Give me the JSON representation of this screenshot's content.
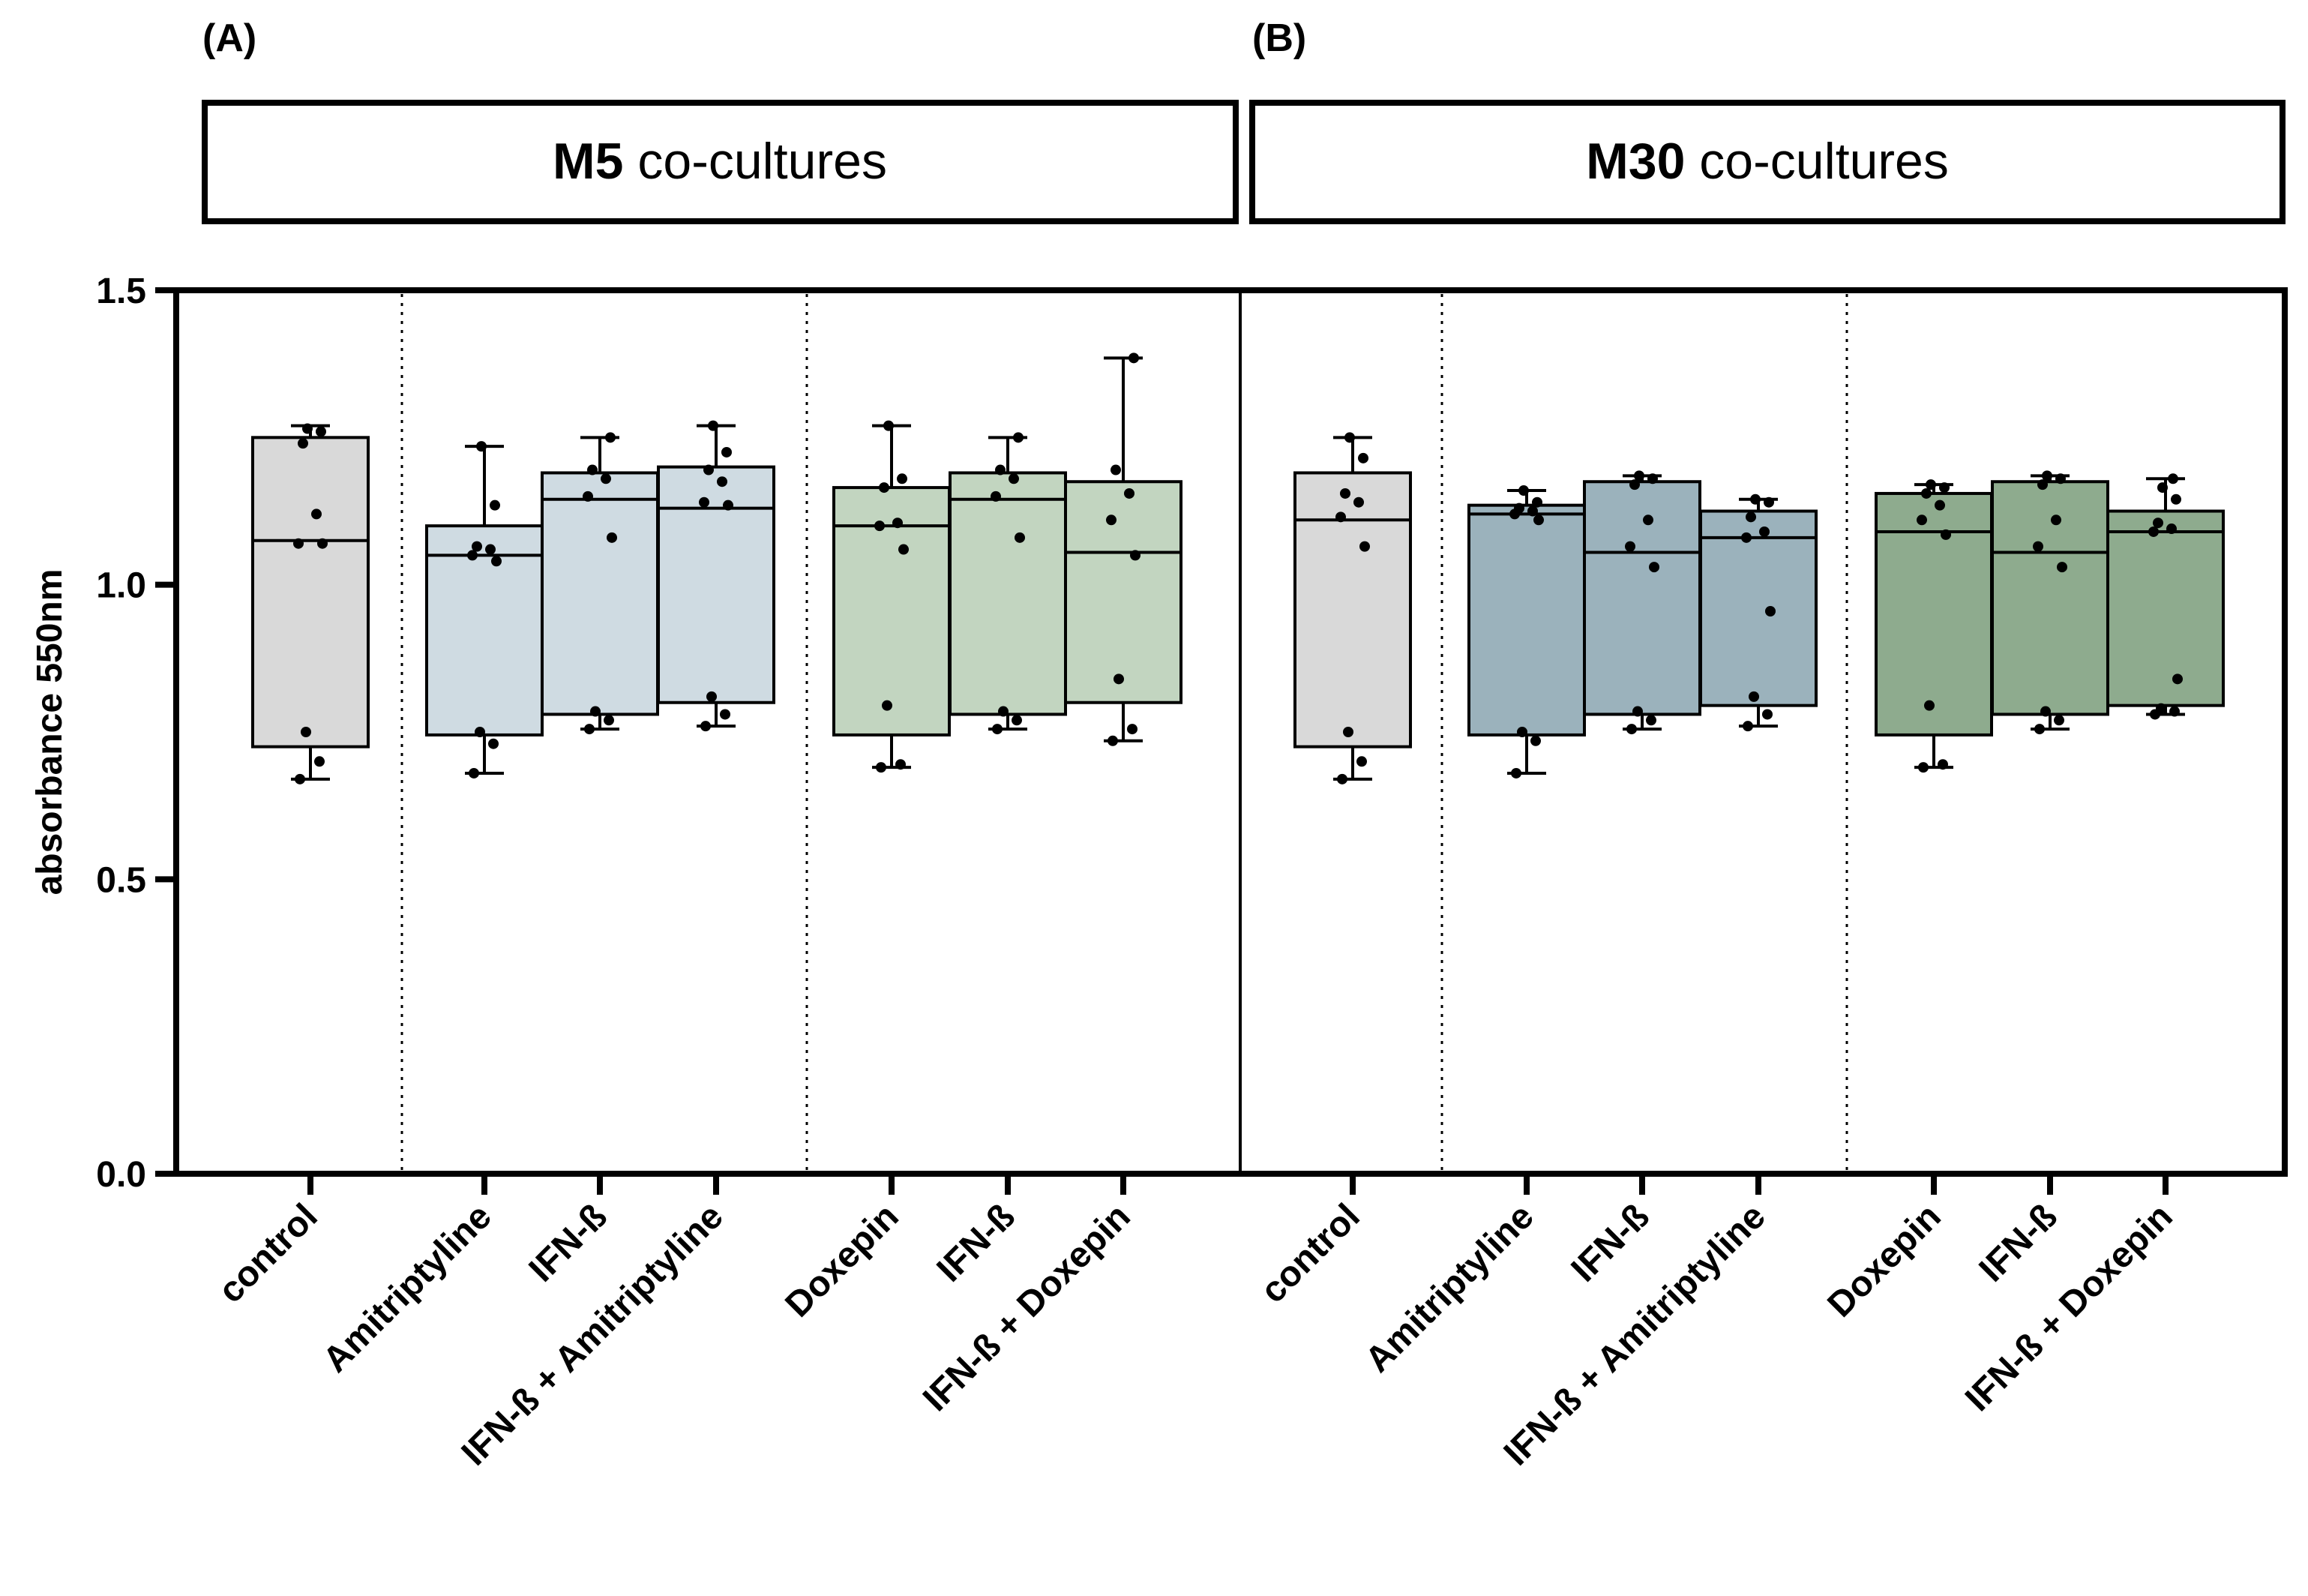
{
  "panels": {
    "a": {
      "tag": "(A)",
      "header_bold": "M5",
      "header_rest": " co-cultures"
    },
    "b": {
      "tag": "(B)",
      "header_bold": "M30",
      "header_rest": " co-cultures"
    }
  },
  "colors": {
    "control": "#d9d9d9",
    "amitriptyline_M5": "#cfdbe2",
    "doxepin_M5": "#c2d5c0",
    "amitriptyline_M30": "#9bb2bc",
    "doxepin_M30": "#8eab8e",
    "stroke": "#000000"
  },
  "chart_data": {
    "type": "box",
    "title": "",
    "xlabel": "",
    "ylabel": "absorbance 550nm",
    "ylim": [
      0,
      1.5
    ],
    "yticks": [
      0.0,
      0.5,
      1.0,
      1.5
    ],
    "ytick_labels": [
      "0.0",
      "0.5",
      "1.0",
      "1.5"
    ],
    "grid": false,
    "groups": [
      {
        "panel": "M5 co-cultures",
        "label": "control",
        "color": "control",
        "box": {
          "min": 0.67,
          "q1": 0.725,
          "median": 1.075,
          "q3": 1.25,
          "max": 1.27
        },
        "points": [
          0.67,
          0.7,
          0.75,
          1.07,
          1.07,
          1.12,
          1.24,
          1.26,
          1.265
        ]
      },
      {
        "panel": "M5 co-cultures",
        "label": "Amitriptyline",
        "color": "amitriptyline_M5",
        "box": {
          "min": 0.68,
          "q1": 0.745,
          "median": 1.05,
          "q3": 1.1,
          "max": 1.235
        },
        "points": [
          0.68,
          0.73,
          0.75,
          1.04,
          1.05,
          1.06,
          1.065,
          1.135,
          1.235
        ]
      },
      {
        "panel": "M5 co-cultures",
        "label": "IFN-ß",
        "color": "amitriptyline_M5",
        "box": {
          "min": 0.755,
          "q1": 0.78,
          "median": 1.145,
          "q3": 1.19,
          "max": 1.25
        },
        "points": [
          0.755,
          0.77,
          0.785,
          1.08,
          1.15,
          1.18,
          1.195,
          1.25
        ]
      },
      {
        "panel": "M5 co-cultures",
        "label": "IFN-ß + Amitriptyline",
        "color": "amitriptyline_M5",
        "box": {
          "min": 0.76,
          "q1": 0.8,
          "median": 1.13,
          "q3": 1.2,
          "max": 1.27
        },
        "points": [
          0.76,
          0.78,
          0.81,
          1.135,
          1.14,
          1.175,
          1.195,
          1.225,
          1.27
        ]
      },
      {
        "panel": "M5 co-cultures",
        "label": "Doxepin",
        "color": "doxepin_M5",
        "box": {
          "min": 0.69,
          "q1": 0.745,
          "median": 1.1,
          "q3": 1.165,
          "max": 1.27
        },
        "points": [
          0.69,
          0.695,
          0.795,
          1.06,
          1.1,
          1.105,
          1.165,
          1.18,
          1.27
        ]
      },
      {
        "panel": "M5 co-cultures",
        "label": "IFN-ß",
        "color": "doxepin_M5",
        "box": {
          "min": 0.755,
          "q1": 0.78,
          "median": 1.145,
          "q3": 1.19,
          "max": 1.25
        },
        "points": [
          0.755,
          0.77,
          0.785,
          1.08,
          1.15,
          1.18,
          1.195,
          1.25
        ]
      },
      {
        "panel": "M5 co-cultures",
        "label": "IFN-ß + Doxepin",
        "color": "doxepin_M5",
        "box": {
          "min": 0.735,
          "q1": 0.8,
          "median": 1.055,
          "q3": 1.175,
          "max": 1.385
        },
        "points": [
          0.735,
          0.755,
          0.84,
          1.05,
          1.11,
          1.155,
          1.195,
          1.385
        ]
      },
      {
        "panel": "M30 co-cultures",
        "label": "control",
        "color": "control",
        "box": {
          "min": 0.67,
          "q1": 0.725,
          "median": 1.11,
          "q3": 1.19,
          "max": 1.25
        },
        "points": [
          0.67,
          0.7,
          0.75,
          1.065,
          1.115,
          1.14,
          1.155,
          1.215,
          1.25
        ]
      },
      {
        "panel": "M30 co-cultures",
        "label": "Amitriptyline",
        "color": "amitriptyline_M30",
        "box": {
          "min": 0.68,
          "q1": 0.745,
          "median": 1.12,
          "q3": 1.135,
          "max": 1.16
        },
        "points": [
          0.68,
          0.735,
          0.75,
          1.11,
          1.12,
          1.125,
          1.13,
          1.14,
          1.16
        ]
      },
      {
        "panel": "M30 co-cultures",
        "label": "IFN-ß",
        "color": "amitriptyline_M30",
        "box": {
          "min": 0.755,
          "q1": 0.78,
          "median": 1.055,
          "q3": 1.175,
          "max": 1.185
        },
        "points": [
          0.755,
          0.77,
          0.785,
          1.03,
          1.065,
          1.11,
          1.17,
          1.18,
          1.185
        ]
      },
      {
        "panel": "M30 co-cultures",
        "label": "IFN-ß + Amitriptyline",
        "color": "amitriptyline_M30",
        "box": {
          "min": 0.76,
          "q1": 0.795,
          "median": 1.08,
          "q3": 1.125,
          "max": 1.145
        },
        "points": [
          0.76,
          0.78,
          0.81,
          0.955,
          1.08,
          1.09,
          1.115,
          1.14,
          1.145
        ]
      },
      {
        "panel": "M30 co-cultures",
        "label": "Doxepin",
        "color": "doxepin_M30",
        "box": {
          "min": 0.69,
          "q1": 0.745,
          "median": 1.09,
          "q3": 1.155,
          "max": 1.17
        },
        "points": [
          0.69,
          0.695,
          0.795,
          1.085,
          1.11,
          1.135,
          1.155,
          1.165,
          1.17
        ]
      },
      {
        "panel": "M30 co-cultures",
        "label": "IFN-ß",
        "color": "doxepin_M30",
        "box": {
          "min": 0.755,
          "q1": 0.78,
          "median": 1.055,
          "q3": 1.175,
          "max": 1.185
        },
        "points": [
          0.755,
          0.77,
          0.785,
          1.03,
          1.065,
          1.11,
          1.17,
          1.18,
          1.185
        ]
      },
      {
        "panel": "M30 co-cultures",
        "label": "IFN-ß + Doxepin",
        "color": "doxepin_M30",
        "box": {
          "min": 0.78,
          "q1": 0.795,
          "median": 1.09,
          "q3": 1.125,
          "max": 1.18
        },
        "points": [
          0.78,
          0.785,
          0.79,
          0.84,
          1.09,
          1.095,
          1.105,
          1.145,
          1.165,
          1.18
        ]
      }
    ]
  }
}
